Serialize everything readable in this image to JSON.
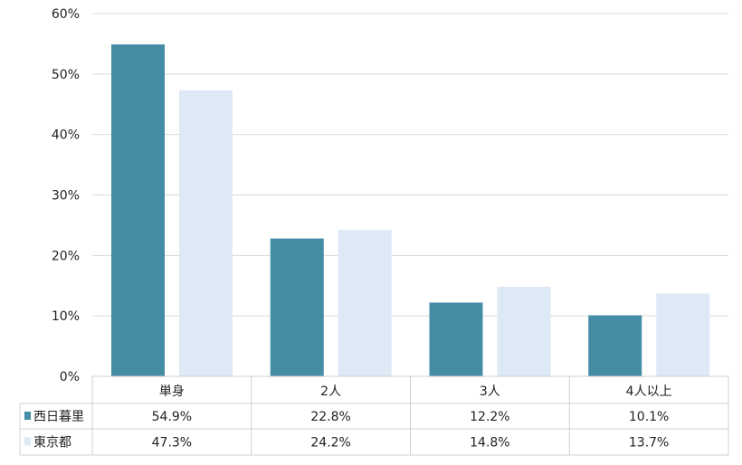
{
  "chart_data": {
    "type": "bar",
    "categories": [
      "単身",
      "2人",
      "3人",
      "4人以上"
    ],
    "series": [
      {
        "name": "西日暮里",
        "values": [
          54.9,
          22.8,
          12.2,
          10.1
        ],
        "labels": [
          "54.9%",
          "22.8%",
          "12.2%",
          "10.1%"
        ],
        "color": "#458ca5"
      },
      {
        "name": "東京都",
        "values": [
          47.3,
          24.2,
          14.8,
          13.7
        ],
        "labels": [
          "47.3%",
          "24.2%",
          "14.8%",
          "13.7%"
        ],
        "color": "#dde9f5"
      }
    ],
    "ylim": [
      0,
      60
    ],
    "yticks": [
      "0%",
      "10%",
      "20%",
      "30%",
      "40%",
      "50%",
      "60%"
    ],
    "grid": true,
    "legend": "data-table"
  }
}
